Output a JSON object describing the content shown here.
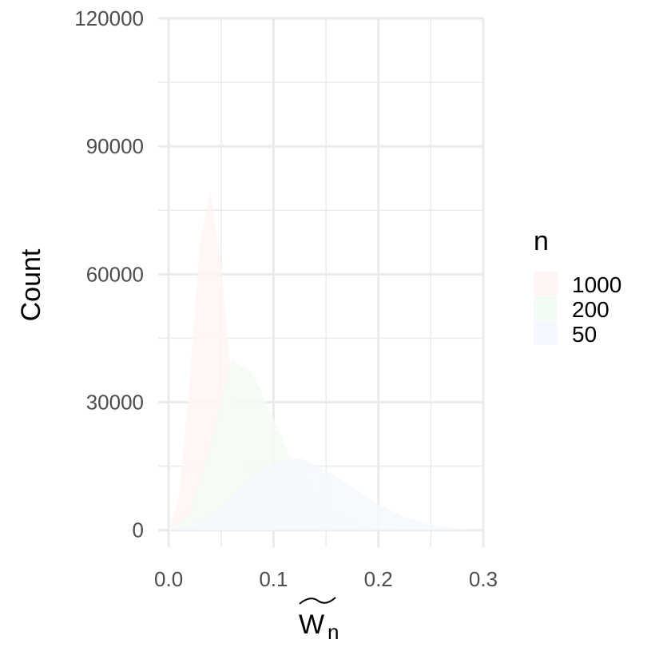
{
  "chart_data": {
    "type": "area",
    "xlabel_main": "W",
    "xlabel_sub": "n",
    "xlabel_accent": "tilde",
    "ylabel": "Count",
    "xlim": [
      -0.01,
      0.3
    ],
    "ylim": [
      -4000,
      120000
    ],
    "x_ticks": [
      0.0,
      0.1,
      0.2,
      0.3
    ],
    "x_tick_labels": [
      "0.0",
      "0.1",
      "0.2",
      "0.3"
    ],
    "y_ticks": [
      0,
      30000,
      60000,
      90000,
      120000
    ],
    "y_tick_labels": [
      "0",
      "30000",
      "60000",
      "90000",
      "120000"
    ],
    "grid": true,
    "legend": {
      "title": "n",
      "position": "right"
    },
    "series": [
      {
        "name": "1000",
        "color": "#fff5f5",
        "x": [
          0.0,
          0.01,
          0.02,
          0.03,
          0.04,
          0.05,
          0.06,
          0.07,
          0.08,
          0.09,
          0.1
        ],
        "y": [
          0,
          8000,
          35000,
          68000,
          79000,
          62000,
          35000,
          16000,
          6000,
          1500,
          0
        ]
      },
      {
        "name": "200",
        "color": "#f3fbf5",
        "x": [
          0.0,
          0.02,
          0.04,
          0.06,
          0.08,
          0.1,
          0.12,
          0.14,
          0.16,
          0.18,
          0.2,
          0.22
        ],
        "y": [
          0,
          4000,
          20000,
          40000,
          37000,
          26000,
          15000,
          8000,
          3500,
          1500,
          500,
          0
        ]
      },
      {
        "name": "50",
        "color": "#f5f8fe",
        "x": [
          0.0,
          0.025,
          0.05,
          0.075,
          0.1,
          0.125,
          0.15,
          0.175,
          0.2,
          0.225,
          0.25,
          0.275,
          0.3
        ],
        "y": [
          0,
          1000,
          5000,
          11000,
          16000,
          17000,
          14000,
          10000,
          6000,
          3000,
          1200,
          400,
          0
        ]
      }
    ]
  }
}
